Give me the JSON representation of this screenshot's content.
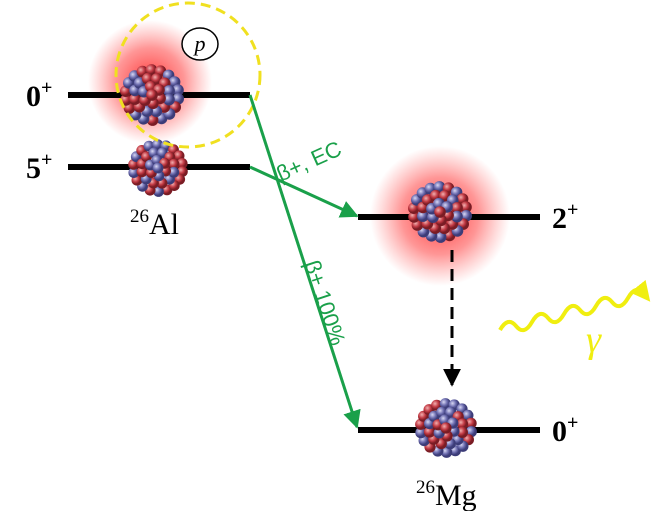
{
  "levels": [
    {
      "spin": "0",
      "parity": "+"
    },
    {
      "spin": "5",
      "parity": "+"
    },
    {
      "spin": "2",
      "parity": "+"
    },
    {
      "spin": "0",
      "parity": "+"
    }
  ],
  "nuclides": [
    {
      "mass": "26",
      "symbol": "Al"
    },
    {
      "mass": "26",
      "symbol": "Mg"
    }
  ],
  "transitions": [
    {
      "label": "β+, EC"
    },
    {
      "label": "β+ 100%"
    }
  ],
  "proton_label": "p",
  "gamma_label": "γ"
}
